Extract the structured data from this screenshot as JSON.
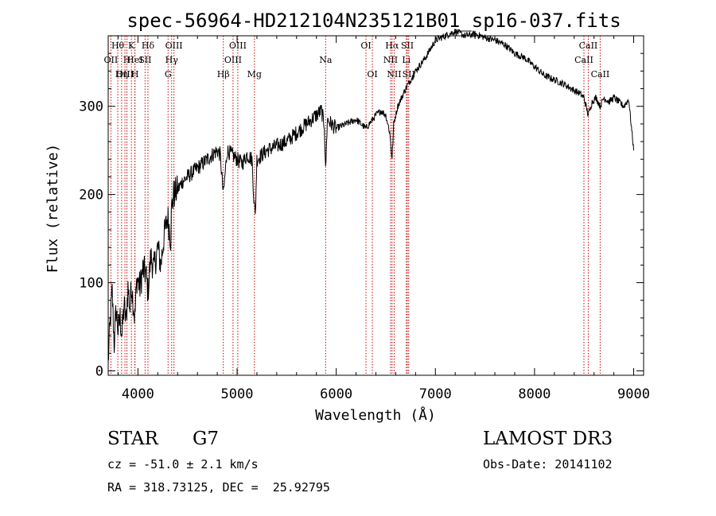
{
  "chart_data": {
    "type": "line",
    "title": "spec-56964-HD212104N235121B01_sp16-037.fits",
    "xlabel": "Wavelength (Å)",
    "ylabel": "Flux (relative)",
    "xlim": [
      3700,
      9100
    ],
    "ylim": [
      -5,
      380
    ],
    "x_ticks": [
      4000,
      5000,
      6000,
      7000,
      8000,
      9000
    ],
    "y_ticks": [
      0,
      100,
      200,
      300
    ],
    "series": [
      {
        "name": "flux",
        "x": [
          3700,
          3720,
          3740,
          3760,
          3780,
          3800,
          3820,
          3840,
          3860,
          3880,
          3900,
          3920,
          3935,
          3950,
          3968,
          3990,
          4020,
          4050,
          4080,
          4101,
          4130,
          4160,
          4200,
          4230,
          4260,
          4300,
          4330,
          4340,
          4360,
          4400,
          4450,
          4500,
          4550,
          4600,
          4650,
          4700,
          4750,
          4800,
          4830,
          4861,
          4900,
          4950,
          5000,
          5050,
          5100,
          5150,
          5170,
          5183,
          5200,
          5250,
          5300,
          5400,
          5500,
          5600,
          5700,
          5800,
          5850,
          5880,
          5893,
          5910,
          5950,
          6000,
          6100,
          6200,
          6300,
          6400,
          6450,
          6500,
          6540,
          6563,
          6580,
          6620,
          6700,
          6800,
          6900,
          7000,
          7100,
          7200,
          7300,
          7400,
          7500,
          7600,
          7700,
          7800,
          7900,
          8000,
          8100,
          8200,
          8300,
          8400,
          8450,
          8498,
          8520,
          8542,
          8580,
          8620,
          8662,
          8700,
          8750,
          8800,
          8850,
          8900,
          8950,
          9000
        ],
        "values": [
          10,
          55,
          90,
          30,
          70,
          45,
          60,
          40,
          75,
          55,
          95,
          70,
          100,
          80,
          60,
          105,
          95,
          115,
          110,
          90,
          130,
          115,
          140,
          120,
          150,
          175,
          150,
          185,
          200,
          205,
          215,
          220,
          225,
          230,
          235,
          240,
          245,
          250,
          245,
          200,
          250,
          245,
          240,
          235,
          245,
          240,
          195,
          175,
          240,
          245,
          250,
          255,
          260,
          270,
          280,
          290,
          295,
          280,
          225,
          285,
          280,
          275,
          280,
          285,
          275,
          290,
          295,
          290,
          270,
          240,
          280,
          300,
          320,
          340,
          355,
          375,
          380,
          385,
          380,
          382,
          378,
          375,
          370,
          360,
          355,
          345,
          335,
          330,
          325,
          318,
          315,
          310,
          300,
          290,
          305,
          310,
          300,
          310,
          305,
          310,
          305,
          300,
          308,
          250
        ]
      }
    ],
    "spectral_lines": [
      {
        "name": "Hθ",
        "wavelength": 3797,
        "row": 0
      },
      {
        "name": "K",
        "wavelength": 3934,
        "row": 0
      },
      {
        "name": "Hδ",
        "wavelength": 4101,
        "row": 0
      },
      {
        "name": "OIII",
        "wavelength": 4363,
        "row": 0
      },
      {
        "name": "OIII",
        "wavelength": 5007,
        "row": 0
      },
      {
        "name": "OI",
        "wavelength": 6300,
        "row": 0
      },
      {
        "name": "Hα",
        "wavelength": 6563,
        "row": 0
      },
      {
        "name": "SII",
        "wavelength": 6717,
        "row": 0
      },
      {
        "name": "CaII",
        "wavelength": 8542,
        "row": 0
      },
      {
        "name": "OII",
        "wavelength": 3727,
        "row": 1
      },
      {
        "name": "H",
        "wavelength": 3889,
        "row": 1
      },
      {
        "name": "HeI",
        "wavelength": 3969,
        "row": 1
      },
      {
        "name": "SII",
        "wavelength": 4072,
        "row": 1
      },
      {
        "name": "Hγ",
        "wavelength": 4340,
        "row": 1
      },
      {
        "name": "OIII",
        "wavelength": 4959,
        "row": 1
      },
      {
        "name": "Na",
        "wavelength": 5893,
        "row": 1
      },
      {
        "name": "NII",
        "wavelength": 6548,
        "row": 1
      },
      {
        "name": "Li",
        "wavelength": 6707,
        "row": 1
      },
      {
        "name": "CaII",
        "wavelength": 8498,
        "row": 1
      },
      {
        "name": "OIII",
        "wavelength": 3869,
        "row": 2
      },
      {
        "name": "Hη",
        "wavelength": 3835,
        "row": 2
      },
      {
        "name": "H",
        "wavelength": 3970,
        "row": 2
      },
      {
        "name": "G",
        "wavelength": 4304,
        "row": 2
      },
      {
        "name": "Hβ",
        "wavelength": 4861,
        "row": 2
      },
      {
        "name": "Mg",
        "wavelength": 5175,
        "row": 2
      },
      {
        "name": "OI",
        "wavelength": 6364,
        "row": 2
      },
      {
        "name": "NII",
        "wavelength": 6584,
        "row": 2
      },
      {
        "name": "SII",
        "wavelength": 6731,
        "row": 2
      },
      {
        "name": "CaII",
        "wavelength": 8662,
        "row": 2
      }
    ]
  },
  "info": {
    "object_type": "STAR",
    "subclass": "G7",
    "survey": "LAMOST DR3",
    "redshift": "cz = -51.0 ± 2.1 km/s",
    "obs_date": "Obs-Date: 20141102",
    "coords": "RA = 318.73125, DEC =  25.92795"
  },
  "colors": {
    "line": "#000000",
    "marker": "#cc0000",
    "background": "#ffffff"
  }
}
